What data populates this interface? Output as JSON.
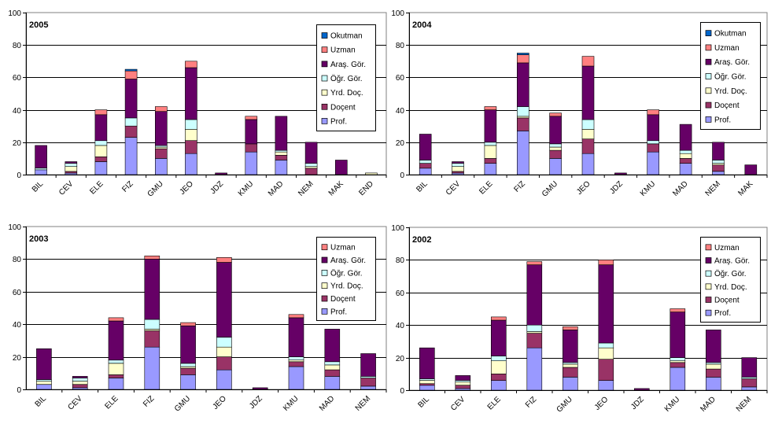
{
  "colors": {
    "Prof.": "#9999ff",
    "Doçent": "#993366",
    "Yrd. Doç.": "#ffffcc",
    "Öğr. Gör.": "#ccffff",
    "Araş. Gör.": "#660066",
    "Uzman": "#ff8080",
    "Okutman": "#0066cc"
  },
  "chart_data": [
    {
      "type": "bar",
      "stacked": true,
      "title": "2005",
      "ylim": [
        0,
        100
      ],
      "yticks": [
        0,
        20,
        40,
        60,
        80,
        100
      ],
      "grid": true,
      "legend_position": "top-right",
      "legend": [
        "Okutman",
        "Uzman",
        "Araş. Gör.",
        "Öğr. Gör.",
        "Yrd. Doç.",
        "Doçent",
        "Prof."
      ],
      "categories": [
        "BIL",
        "CEV",
        "ELE",
        "FIZ",
        "GMU",
        "JEO",
        "JDZ",
        "KMU",
        "MAD",
        "NEM",
        "MAK",
        "END"
      ],
      "series": [
        {
          "name": "Prof.",
          "values": [
            3,
            1,
            8,
            23,
            10,
            13,
            0,
            14,
            9,
            0,
            0,
            0
          ]
        },
        {
          "name": "Doçent",
          "values": [
            0,
            1,
            3,
            7,
            6,
            8,
            0,
            5,
            3,
            4,
            0,
            0
          ]
        },
        {
          "name": "Yrd. Doç.",
          "values": [
            0,
            3,
            7,
            0,
            1,
            7,
            0,
            0,
            2,
            1,
            0,
            1
          ]
        },
        {
          "name": "Öğr. Gör.",
          "values": [
            1,
            2,
            3,
            5,
            1,
            6,
            0,
            0,
            1,
            2,
            0,
            0
          ]
        },
        {
          "name": "Araş. Gör.",
          "values": [
            14,
            1,
            16,
            24,
            21,
            32,
            1,
            15,
            21,
            13,
            9,
            0
          ]
        },
        {
          "name": "Uzman",
          "values": [
            0,
            0,
            3,
            5,
            3,
            4,
            0,
            2,
            0,
            0,
            0,
            0
          ]
        },
        {
          "name": "Okutman",
          "values": [
            0,
            0,
            0,
            1,
            0,
            0,
            0,
            0,
            0,
            0,
            0,
            0
          ]
        }
      ]
    },
    {
      "type": "bar",
      "stacked": true,
      "title": "2004",
      "ylim": [
        0,
        100
      ],
      "yticks": [
        0,
        20,
        40,
        60,
        80,
        100
      ],
      "grid": true,
      "legend_position": "top-right",
      "legend": [
        "Okutman",
        "Uzman",
        "Araş. Gör.",
        "Öğr. Gör.",
        "Yrd. Doç.",
        "Doçent",
        "Prof."
      ],
      "categories": [
        "BIL",
        "CEV",
        "ELE",
        "FIZ",
        "GMU",
        "JEO",
        "JDZ",
        "KMU",
        "MAD",
        "NEM",
        "MAK"
      ],
      "series": [
        {
          "name": "Prof.",
          "values": [
            4,
            1,
            7,
            27,
            10,
            13,
            0,
            14,
            7,
            2,
            0
          ]
        },
        {
          "name": "Doçent",
          "values": [
            3,
            1,
            3,
            8,
            5,
            9,
            0,
            5,
            3,
            4,
            0
          ]
        },
        {
          "name": "Yrd. Doç.",
          "values": [
            0,
            3,
            8,
            1,
            2,
            6,
            0,
            0,
            3,
            1,
            0
          ]
        },
        {
          "name": "Öğr. Gör.",
          "values": [
            2,
            2,
            2,
            6,
            2,
            6,
            0,
            2,
            2,
            2,
            0
          ]
        },
        {
          "name": "Araş. Gör.",
          "values": [
            16,
            1,
            20,
            27,
            17,
            33,
            1,
            16,
            16,
            11,
            6
          ]
        },
        {
          "name": "Uzman",
          "values": [
            0,
            0,
            2,
            5,
            2,
            6,
            0,
            3,
            0,
            0,
            0
          ]
        },
        {
          "name": "Okutman",
          "values": [
            0,
            0,
            0,
            1,
            0,
            0,
            0,
            0,
            0,
            0,
            0
          ]
        }
      ]
    },
    {
      "type": "bar",
      "stacked": true,
      "title": "2003",
      "ylim": [
        0,
        100
      ],
      "yticks": [
        0,
        20,
        40,
        60,
        80,
        100
      ],
      "grid": true,
      "legend_position": "top-right",
      "legend": [
        "Uzman",
        "Araş. Gör.",
        "Öğr. Gör.",
        "Yrd. Doç.",
        "Doçent",
        "Prof."
      ],
      "categories": [
        "BIL",
        "CEV",
        "ELE",
        "FIZ",
        "GMU",
        "JEO",
        "JDZ",
        "KMU",
        "MAD",
        "NEM"
      ],
      "series": [
        {
          "name": "Prof.",
          "values": [
            3,
            1,
            7,
            26,
            9,
            12,
            0,
            14,
            8,
            2
          ]
        },
        {
          "name": "Doçent",
          "values": [
            0,
            2,
            2,
            10,
            4,
            8,
            0,
            3,
            4,
            5
          ]
        },
        {
          "name": "Yrd. Doç.",
          "values": [
            2,
            2,
            7,
            1,
            1,
            6,
            0,
            1,
            3,
            0
          ]
        },
        {
          "name": "Öğr. Gör.",
          "values": [
            1,
            2,
            2,
            6,
            2,
            6,
            0,
            2,
            2,
            1
          ]
        },
        {
          "name": "Araş. Gör.",
          "values": [
            19,
            1,
            24,
            37,
            23,
            46,
            1,
            24,
            20,
            14
          ]
        },
        {
          "name": "Uzman",
          "values": [
            0,
            0,
            2,
            2,
            2,
            3,
            0,
            2,
            0,
            0
          ]
        }
      ]
    },
    {
      "type": "bar",
      "stacked": true,
      "title": "2002",
      "ylim": [
        0,
        100
      ],
      "yticks": [
        0,
        20,
        40,
        60,
        80,
        100
      ],
      "grid": true,
      "legend_position": "top-right",
      "legend": [
        "Uzman",
        "Araş. Gör.",
        "Öğr. Gör.",
        "Yrd. Doç.",
        "Doçent",
        "Prof."
      ],
      "categories": [
        "BIL",
        "CEV",
        "ELE",
        "FIZ",
        "GMU",
        "JEO",
        "JDZ",
        "KMU",
        "MAD",
        "NEM"
      ],
      "series": [
        {
          "name": "Prof.",
          "values": [
            3,
            1,
            6,
            26,
            8,
            6,
            0,
            14,
            8,
            2
          ]
        },
        {
          "name": "Doçent",
          "values": [
            1,
            2,
            4,
            9,
            6,
            13,
            0,
            3,
            5,
            5
          ]
        },
        {
          "name": "Yrd. Doç.",
          "values": [
            2,
            2,
            8,
            1,
            2,
            7,
            0,
            1,
            3,
            0
          ]
        },
        {
          "name": "Öğr. Gör.",
          "values": [
            1,
            1,
            3,
            4,
            1,
            3,
            0,
            2,
            1,
            1
          ]
        },
        {
          "name": "Araş. Gör.",
          "values": [
            19,
            3,
            22,
            37,
            20,
            48,
            1,
            28,
            20,
            12
          ]
        },
        {
          "name": "Uzman",
          "values": [
            0,
            0,
            2,
            2,
            2,
            3,
            0,
            2,
            0,
            0
          ]
        }
      ]
    }
  ]
}
